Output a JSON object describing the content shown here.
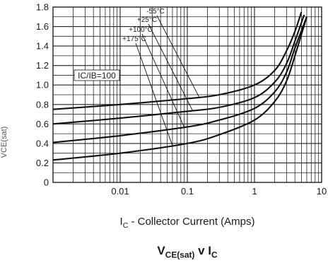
{
  "chart_data": {
    "type": "line",
    "title": "VCE(sat) v IC",
    "title_parts": {
      "v": "V",
      "v_sub": "CE(sat)",
      "mid": " v I",
      "i_sub": "C"
    },
    "xlabel": "IC - Collector Current (Amps)",
    "xlabel_parts": {
      "i": "I",
      "i_sub": "C",
      "rest": " - Collector Current (Amps)"
    },
    "ylabel": "VCE(sat)",
    "x_scale": "log",
    "xlim": [
      0.001,
      10
    ],
    "ylim": [
      0,
      1.8
    ],
    "x_ticks": [
      {
        "value": 0.01,
        "label": "0.01"
      },
      {
        "value": 0.1,
        "label": "0.1"
      },
      {
        "value": 1,
        "label": "1"
      },
      {
        "value": 10,
        "label": "10"
      }
    ],
    "y_ticks": [
      {
        "value": 0,
        "label": "0"
      },
      {
        "value": 0.2,
        "label": "0.2"
      },
      {
        "value": 0.4,
        "label": "0.4"
      },
      {
        "value": 0.6,
        "label": "0.6"
      },
      {
        "value": 0.8,
        "label": "0.8"
      },
      {
        "value": 1.0,
        "label": "1.0"
      },
      {
        "value": 1.2,
        "label": "1.2"
      },
      {
        "value": 1.4,
        "label": "1.4"
      },
      {
        "value": 1.6,
        "label": "1.6"
      },
      {
        "value": 1.8,
        "label": "1.8"
      }
    ],
    "grid": true,
    "legend_box": "IC/IB=100",
    "series": [
      {
        "name": "-55°C",
        "x": [
          0.001,
          0.01,
          0.1,
          0.3,
          1,
          2,
          3,
          4,
          5
        ],
        "y": [
          0.75,
          0.8,
          0.86,
          0.9,
          1.0,
          1.15,
          1.35,
          1.55,
          1.75
        ]
      },
      {
        "name": "+25°C",
        "x": [
          0.001,
          0.01,
          0.1,
          0.3,
          1,
          2,
          3,
          4,
          5.5
        ],
        "y": [
          0.6,
          0.66,
          0.73,
          0.77,
          0.87,
          1.03,
          1.22,
          1.45,
          1.72
        ]
      },
      {
        "name": "+100°C",
        "x": [
          0.001,
          0.01,
          0.1,
          0.3,
          1,
          2,
          3,
          4,
          6
        ],
        "y": [
          0.41,
          0.48,
          0.57,
          0.64,
          0.76,
          0.93,
          1.13,
          1.38,
          1.7
        ]
      },
      {
        "name": "+175°C",
        "x": [
          0.001,
          0.01,
          0.1,
          0.3,
          1,
          2,
          3,
          4,
          6
        ],
        "y": [
          0.23,
          0.3,
          0.4,
          0.49,
          0.64,
          0.83,
          1.04,
          1.3,
          1.7
        ]
      }
    ]
  }
}
